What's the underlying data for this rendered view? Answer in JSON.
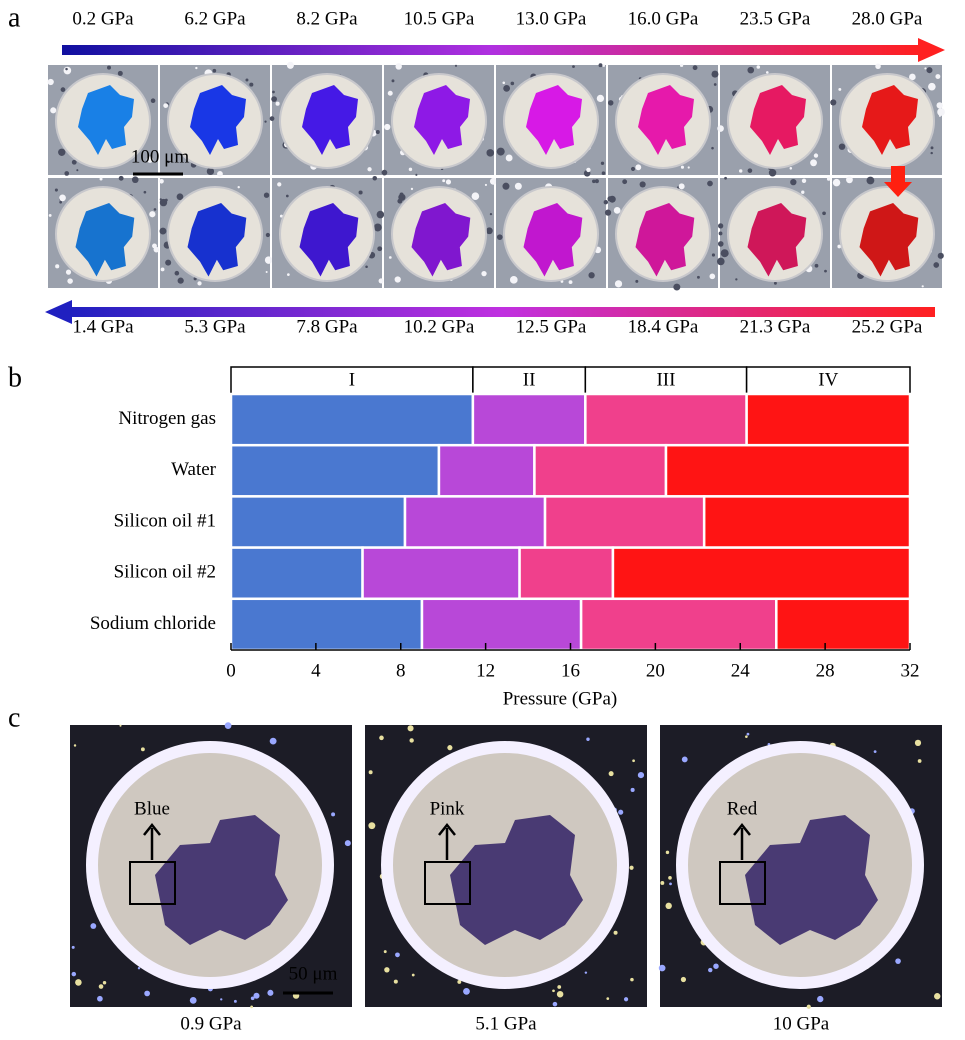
{
  "panel_letters": [
    "a",
    "b",
    "c"
  ],
  "panel_a": {
    "top_pressures": [
      "0.2 GPa",
      "6.2 GPa",
      "8.2 GPa",
      "10.5 GPa",
      "13.0 GPa",
      "16.0 GPa",
      "23.5 GPa",
      "28.0 GPa"
    ],
    "bottom_pressures": [
      "1.4 GPa",
      "5.3 GPa",
      "7.8 GPa",
      "10.2 GPa",
      "12.5 GPa",
      "18.4 GPa",
      "21.3 GPa",
      "25.2 GPa"
    ],
    "scale_bar": "100 μm"
  },
  "chart_data": {
    "type": "bar",
    "orientation": "horizontal",
    "stacked": true,
    "categories": [
      "Nitrogen gas",
      "Water",
      "Silicon oil #1",
      "Silicon oil #2",
      "Sodium chloride"
    ],
    "series": [
      {
        "name": "I",
        "color": "#4a78d0",
        "values": [
          11.4,
          9.8,
          8.2,
          6.2,
          9.0
        ]
      },
      {
        "name": "II",
        "color": "#b848d8",
        "values": [
          5.3,
          4.5,
          6.6,
          7.4,
          7.5
        ]
      },
      {
        "name": "III",
        "color": "#f0408c",
        "values": [
          7.6,
          6.2,
          7.5,
          4.4,
          9.2
        ]
      },
      {
        "name": "IV",
        "color": "#ff1414",
        "values": [
          7.7,
          11.5,
          9.7,
          14.0,
          6.3
        ]
      }
    ],
    "xlim": [
      0,
      32
    ],
    "xticks": [
      0,
      4,
      8,
      12,
      16,
      20,
      24,
      28,
      32
    ],
    "xlabel": "Pressure (GPa)"
  },
  "panel_c": {
    "scale_bar": "50 μm",
    "images": [
      {
        "label": "Blue",
        "color": "#1a1aff",
        "pressure": "0.9 GPa"
      },
      {
        "label": "Pink",
        "color": "#e020e0",
        "pressure": "5.1 GPa"
      },
      {
        "label": "Red",
        "color": "#ff1010",
        "pressure": "10 GPa"
      }
    ]
  }
}
